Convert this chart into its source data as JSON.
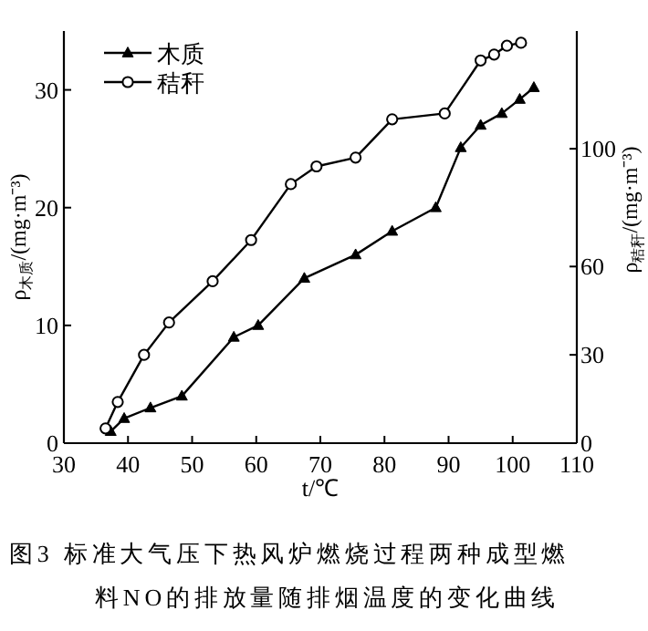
{
  "chart_data": {
    "type": "line",
    "annotations": [
      "图3 标准大气压下热风炉燃烧过程两种成型燃料NO的排放量随排烟温度的变化曲线"
    ],
    "xlabel": "t/℃",
    "ylabel": "ρ$_{木质}$/(mg·m⁻³)",
    "y2label": "ρ$_{秸秆}$/(mg·m⁻³)",
    "xlim": [
      30,
      110
    ],
    "xticks": [
      30,
      40,
      50,
      60,
      70,
      80,
      90,
      100,
      110
    ],
    "ylim": [
      0,
      35
    ],
    "yticks": [
      0,
      10,
      20,
      30
    ],
    "y2lim": [
      0,
      140
    ],
    "y2ticks": [
      0,
      30,
      60,
      100
    ],
    "grid": false,
    "legend": "top left",
    "line_style": "solid",
    "series": [
      {
        "name": "木质",
        "color": "#000000",
        "marker": "triangle",
        "x": [
          37.3,
          39.4,
          43.5,
          48.4,
          56.5,
          60.3,
          67.5,
          75.5,
          81.2,
          88.0,
          91.9,
          95.0,
          98.3,
          101.1,
          103.3
        ],
        "values": [
          1.0,
          2.1,
          3.0,
          4.0,
          9.0,
          10.0,
          14.0,
          16.0,
          18.0,
          20.0,
          25.1,
          27.0,
          28.0,
          29.2,
          30.2
        ]
      },
      {
        "name": "秸秆",
        "color": "#000000",
        "marker": "circle",
        "axis": "y2",
        "x": [
          36.5,
          38.4,
          42.5,
          46.4,
          53.2,
          59.2,
          65.4,
          69.4,
          75.5,
          81.2,
          89.4,
          95.0,
          97.1,
          99.1,
          101.3
        ],
        "values": [
          5,
          14,
          30,
          41,
          55,
          69,
          88,
          94,
          97,
          110,
          112,
          130,
          132,
          135,
          136
        ]
      }
    ]
  }
}
